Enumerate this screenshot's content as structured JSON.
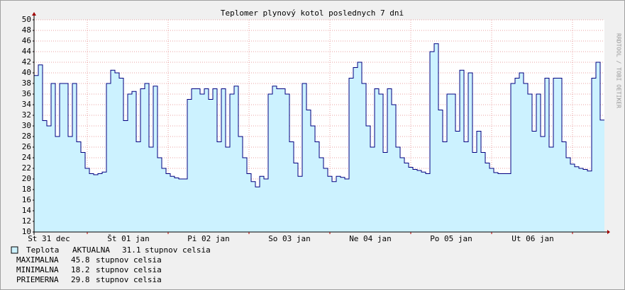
{
  "chart_data": {
    "type": "area",
    "title": "Teplomer plynový kotol poslednych 7 dni",
    "side_text": "RRDTOOL / TOBI OETIKER",
    "ylim": [
      10,
      50
    ],
    "yticks": [
      10,
      12,
      14,
      16,
      18,
      20,
      22,
      24,
      26,
      28,
      30,
      32,
      34,
      36,
      38,
      40,
      42,
      44,
      46,
      48,
      50
    ],
    "xlim": [
      0,
      134
    ],
    "xticks": [
      {
        "value": 3.5,
        "label": "St 31 dec"
      },
      {
        "value": 22.17,
        "label": "Št 01 jan"
      },
      {
        "value": 41,
        "label": "Pi 02 jan"
      },
      {
        "value": 60,
        "label": "So 03 jan"
      },
      {
        "value": 79,
        "label": "Ne 04 jan"
      },
      {
        "value": 98,
        "label": "Po 05 jan"
      },
      {
        "value": 117.17,
        "label": "Ut 06 jan"
      }
    ],
    "xgrid": [
      12.5,
      31.5,
      50.5,
      69.5,
      88.5,
      107.5,
      126.5
    ],
    "grid": true,
    "series": [
      {
        "name": "Teplota",
        "color": "#000080",
        "fill": "#ccf2ff",
        "values": [
          39.5,
          41.5,
          31,
          30,
          38,
          28,
          38,
          38,
          28,
          38,
          27,
          25,
          22,
          21,
          20.8,
          21,
          21.3,
          38,
          40.5,
          40,
          39,
          31,
          36,
          36.5,
          27,
          37,
          38,
          26,
          37.5,
          24,
          22,
          21,
          20.5,
          20.2,
          20,
          20,
          35,
          37,
          37,
          36,
          37,
          35,
          37,
          27,
          37,
          26,
          36,
          37.5,
          28,
          24,
          21,
          19.5,
          18.5,
          20.5,
          20,
          36,
          37.5,
          37,
          37,
          36,
          27,
          23,
          20.5,
          38,
          33,
          30,
          27,
          24,
          22,
          20.5,
          19.5,
          20.5,
          20.3,
          20,
          39,
          41,
          42,
          38,
          30,
          26,
          37,
          36,
          25,
          37,
          34,
          26,
          24,
          23,
          22.2,
          21.8,
          21.6,
          21.3,
          21,
          44,
          45.5,
          33,
          27,
          36,
          36,
          29,
          40.5,
          27,
          40,
          25,
          29,
          25,
          23,
          22,
          21.2,
          21,
          21,
          21,
          38,
          39,
          40,
          38,
          36,
          29,
          36,
          28,
          39,
          26,
          39,
          39,
          27,
          24,
          22.8,
          22.3,
          22,
          21.8,
          21.5,
          39,
          42,
          31.1
        ]
      }
    ],
    "legend": {
      "current": {
        "label": "AKTUALNA",
        "value": 31.1,
        "unit": "stupnov celsia"
      },
      "stats": [
        {
          "label": "MAXIMALNA",
          "value": 45.8,
          "unit": "stupnov celsia"
        },
        {
          "label": "MINIMALNA",
          "value": 18.2,
          "unit": "stupnov celsia"
        },
        {
          "label": "PRIEMERNA",
          "value": 29.8,
          "unit": "stupnov celsia"
        }
      ]
    }
  }
}
